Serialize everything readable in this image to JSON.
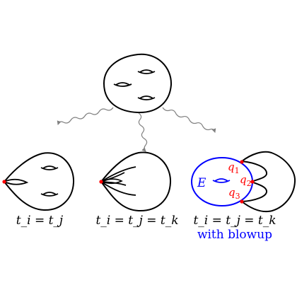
{
  "colors": {
    "ink": "#000000",
    "arrow": "#808080",
    "blowup": "#0000ff",
    "marker": "#ff0000"
  },
  "labels": {
    "left": "t_i = t_j",
    "middle": "t_i = t_j = t_k",
    "right": "t_i = t_j = t_k",
    "right_caption": "with blowup",
    "exceptional": "E",
    "q1": "q",
    "q1_sub": "1",
    "q2": "q",
    "q2_sub": "2",
    "q3": "q",
    "q3_sub": "3"
  }
}
